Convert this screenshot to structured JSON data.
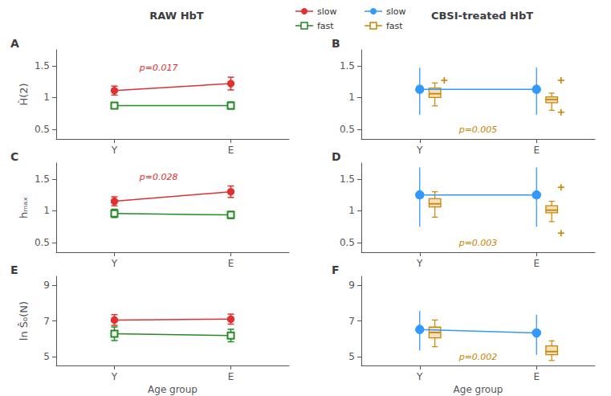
{
  "chart_data": [
    {
      "type": "line",
      "title": "A",
      "subtitle": "RAW HbT",
      "categories": [
        "Y",
        "E"
      ],
      "y_label": "Ĥ(2)",
      "ylim": [
        0.35,
        1.75
      ],
      "yticks": [
        0.5,
        1,
        1.5
      ],
      "grid": false,
      "legend": "top",
      "series": [
        {
          "name": "slow",
          "type": "line",
          "color": "#e03030",
          "marker": "circle",
          "values": [
            1.11,
            1.22
          ],
          "errors": [
            0.07,
            0.1
          ]
        },
        {
          "name": "fast",
          "type": "line",
          "color": "#228B22",
          "marker": "square",
          "values": [
            0.875,
            0.875
          ],
          "errors": [
            0.045,
            0.055
          ]
        }
      ],
      "annotations": [
        {
          "text": "p=0.017",
          "x": 0.38,
          "y": 1.4,
          "color": "#e03030"
        }
      ]
    },
    {
      "type": "boxplot",
      "title": "B",
      "subtitle": "CBSI-treated HbT",
      "categories": [
        "Y",
        "E"
      ],
      "ylim": [
        0.35,
        1.75
      ],
      "yticks": [
        0.5,
        1,
        1.5
      ],
      "grid": false,
      "legend": "top",
      "series": [
        {
          "name": "slow",
          "type": "line",
          "color": "#3399ff",
          "marker": "circle",
          "values": [
            1.13,
            1.13
          ],
          "low": [
            0.73,
            0.73
          ],
          "high": [
            1.47,
            1.47
          ]
        },
        {
          "name": "fast",
          "type": "boxplot",
          "color": "#CC8400",
          "values": [
            [
              0.87,
              1.0,
              1.06,
              1.15,
              1.23
            ],
            [
              0.8,
              0.92,
              0.97,
              1.01,
              1.07
            ]
          ],
          "outliers": [
            [
              1.27
            ],
            [
              1.27,
              0.77
            ]
          ]
        }
      ],
      "annotations": [
        {
          "text": "p=0.005",
          "x": 0.5,
          "y": 0.42,
          "color": "#CC8400"
        }
      ]
    },
    {
      "type": "line",
      "title": "C",
      "categories": [
        "Y",
        "E"
      ],
      "y_label": "hₘₐₓ",
      "ylim": [
        0.35,
        1.75
      ],
      "yticks": [
        0.5,
        1,
        1.5
      ],
      "grid": false,
      "series": [
        {
          "name": "slow",
          "type": "line",
          "color": "#e03030",
          "marker": "circle",
          "values": [
            1.15,
            1.3
          ],
          "errors": [
            0.07,
            0.09
          ]
        },
        {
          "name": "fast",
          "type": "line",
          "color": "#228B22",
          "marker": "square",
          "values": [
            0.96,
            0.935
          ],
          "errors": [
            0.065,
            0.055
          ]
        }
      ],
      "annotations": [
        {
          "text": "p=0.028",
          "x": 0.38,
          "y": 1.46,
          "color": "#e03030"
        }
      ]
    },
    {
      "type": "boxplot",
      "title": "D",
      "categories": [
        "Y",
        "E"
      ],
      "ylim": [
        0.35,
        1.75
      ],
      "yticks": [
        0.5,
        1,
        1.5
      ],
      "grid": false,
      "series": [
        {
          "name": "slow",
          "type": "line",
          "color": "#3399ff",
          "marker": "circle",
          "values": [
            1.25,
            1.25
          ],
          "low": [
            0.75,
            0.75
          ],
          "high": [
            1.68,
            1.68
          ]
        },
        {
          "name": "fast",
          "type": "boxplot",
          "color": "#CC8400",
          "values": [
            [
              0.9,
              1.06,
              1.11,
              1.19,
              1.3
            ],
            [
              0.83,
              0.97,
              1.01,
              1.08,
              1.15
            ]
          ],
          "outliers": [
            [],
            [
              1.37,
              0.65
            ]
          ]
        }
      ],
      "annotations": [
        {
          "text": "p=0.003",
          "x": 0.5,
          "y": 0.42,
          "color": "#CC8400"
        }
      ]
    },
    {
      "type": "line",
      "title": "E",
      "categories": [
        "Y",
        "E"
      ],
      "x_label": "Age group",
      "y_label": "ln Ŝ₀(N)",
      "ylim": [
        4.5,
        9.5
      ],
      "yticks": [
        5,
        7,
        9
      ],
      "grid": false,
      "series": [
        {
          "name": "slow",
          "type": "line",
          "color": "#e03030",
          "marker": "circle",
          "values": [
            7.05,
            7.1
          ],
          "errors": [
            0.3,
            0.28
          ]
        },
        {
          "name": "fast",
          "type": "line",
          "color": "#228B22",
          "marker": "square",
          "values": [
            6.28,
            6.18
          ],
          "errors": [
            0.38,
            0.35
          ]
        }
      ]
    },
    {
      "type": "boxplot",
      "title": "F",
      "categories": [
        "Y",
        "E"
      ],
      "x_label": "Age group",
      "ylim": [
        4.5,
        9.5
      ],
      "yticks": [
        5,
        7,
        9
      ],
      "grid": false,
      "series": [
        {
          "name": "slow",
          "type": "line",
          "color": "#3399ff",
          "marker": "circle",
          "values": [
            6.52,
            6.32
          ],
          "low": [
            5.35,
            5.1
          ],
          "high": [
            7.55,
            7.35
          ]
        },
        {
          "name": "fast",
          "type": "boxplot",
          "color": "#CC8400",
          "values": [
            [
              5.55,
              6.05,
              6.35,
              6.65,
              7.05
            ],
            [
              4.78,
              5.1,
              5.28,
              5.6,
              5.88
            ]
          ],
          "outliers": [
            [],
            []
          ]
        }
      ],
      "annotations": [
        {
          "text": "p=0.002",
          "x": 0.5,
          "y": 4.72,
          "color": "#CC8400"
        }
      ]
    }
  ]
}
